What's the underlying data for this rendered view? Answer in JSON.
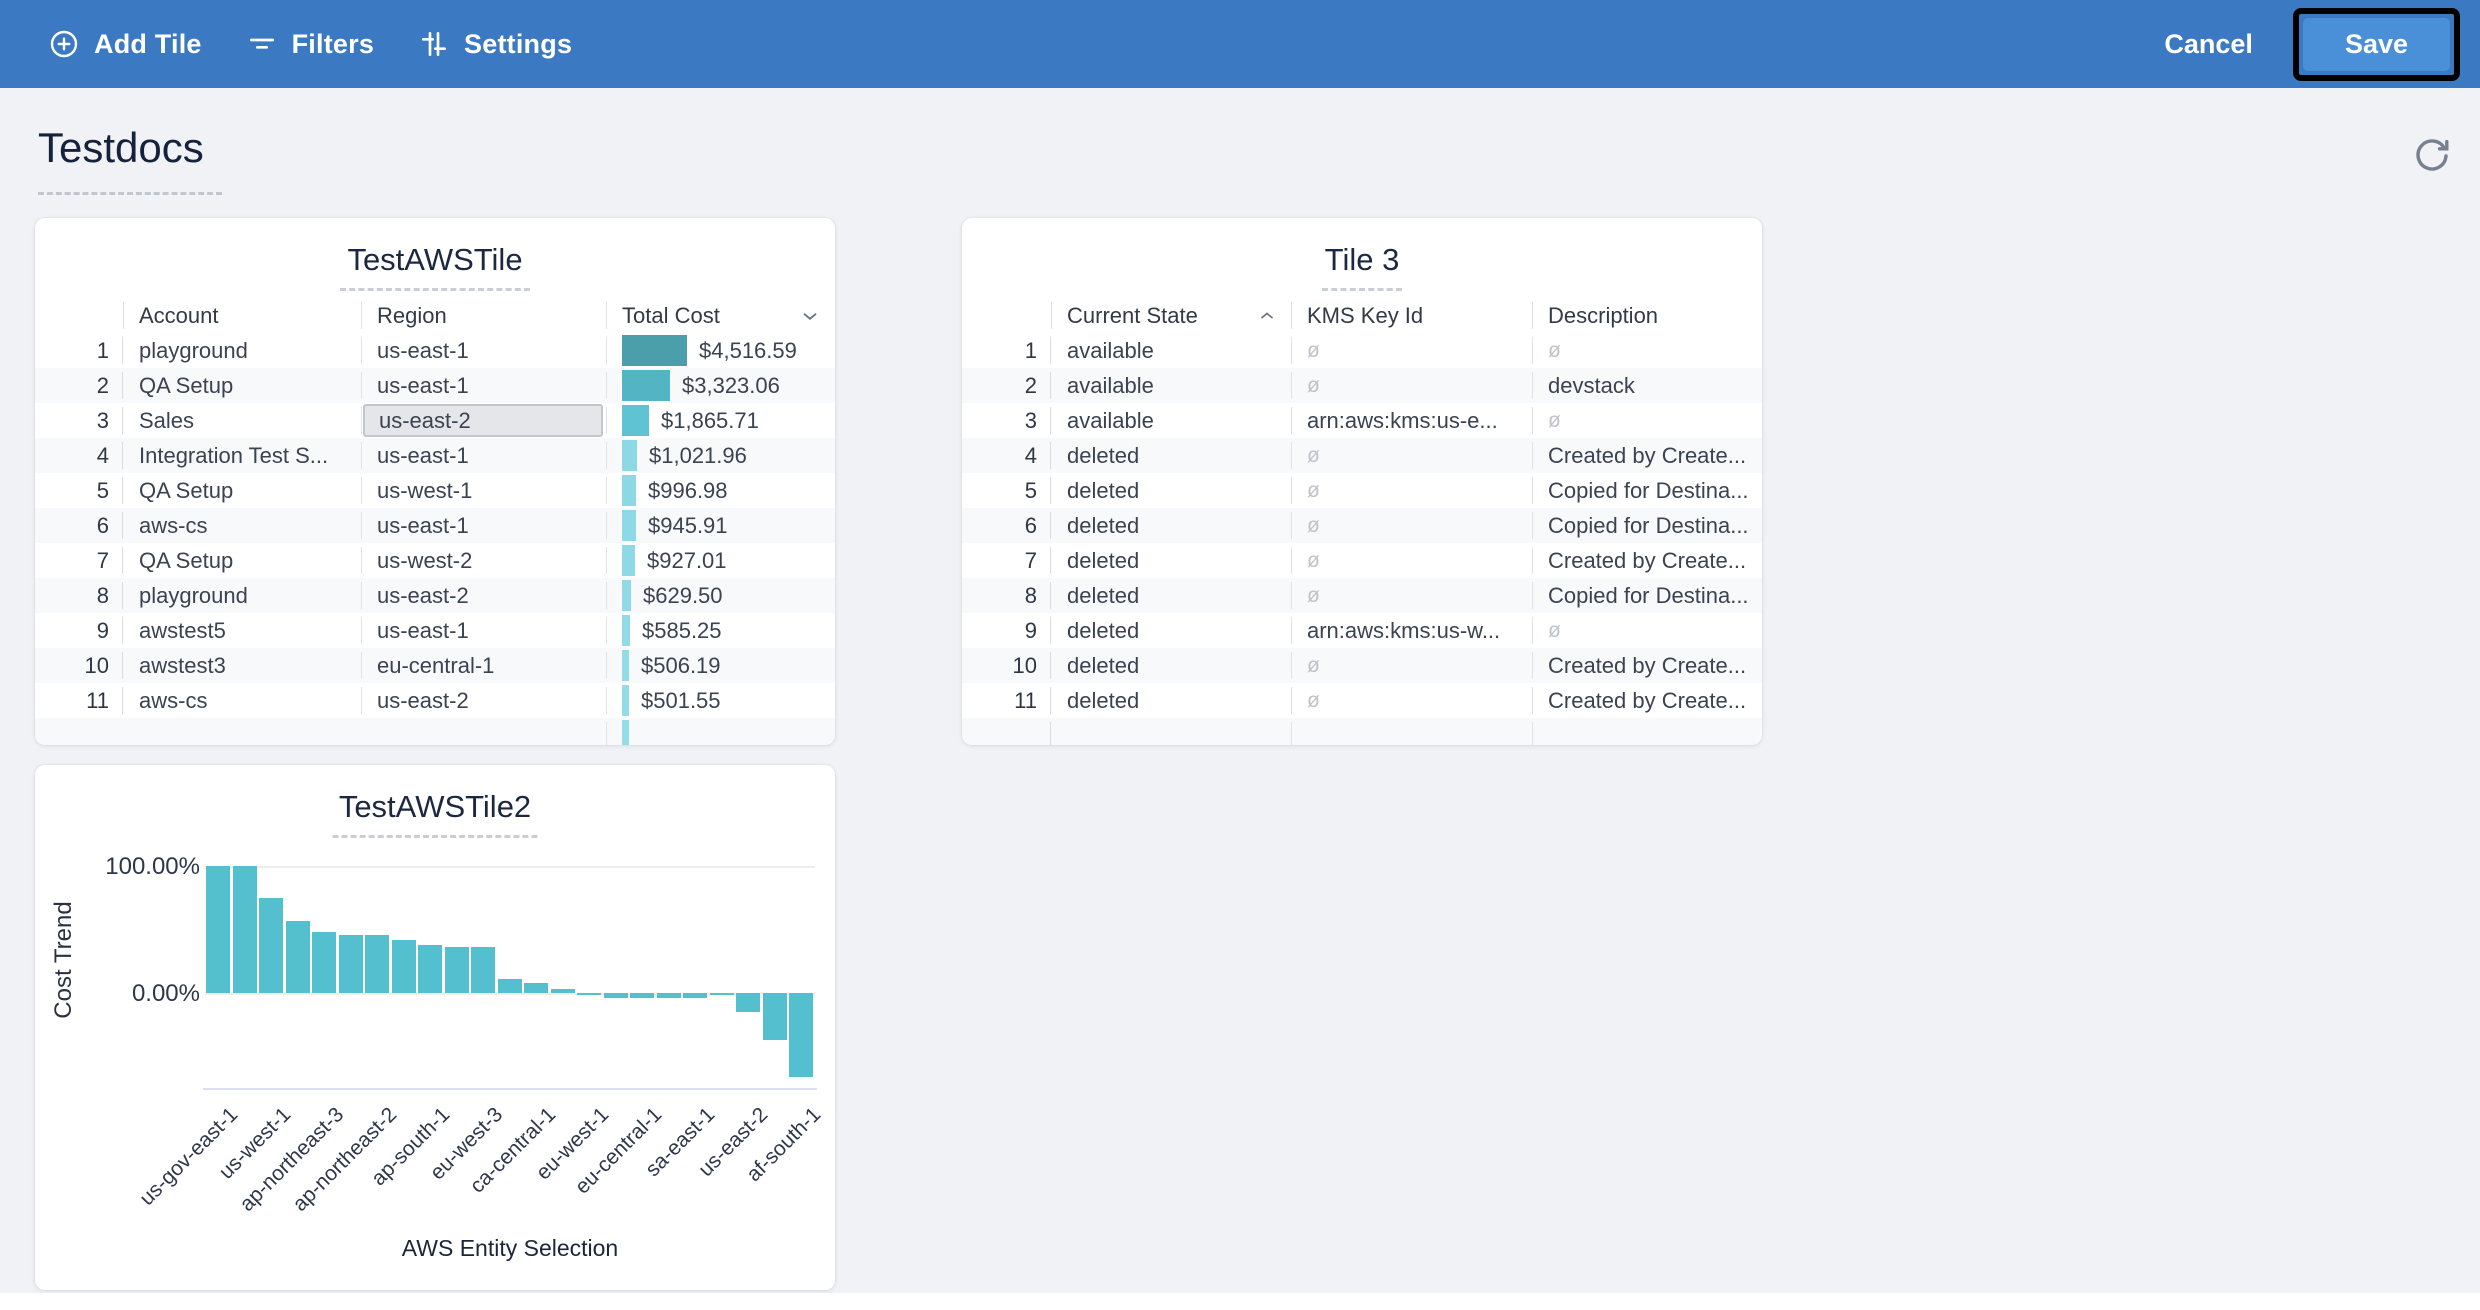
{
  "toolbar": {
    "add_tile_label": "Add Tile",
    "filters_label": "Filters",
    "settings_label": "Settings",
    "cancel_label": "Cancel",
    "save_label": "Save",
    "bar_color": "#3B7AC2",
    "save_button_color": "#4A90D8"
  },
  "page": {
    "title": "Testdocs"
  },
  "tile1": {
    "title": "TestAWSTile",
    "columns": {
      "0": "Account",
      "1": "Region",
      "2": "Total Cost"
    },
    "sort": {
      "column": "Total Cost",
      "direction": "desc"
    },
    "max_cost_value": 4516.59,
    "rows": [
      {
        "num": "1",
        "account": "playground",
        "region": "us-east-1",
        "cost": "$4,516.59",
        "cost_value": 4516.59,
        "bar_color": "#4A9FAB"
      },
      {
        "num": "2",
        "account": "QA Setup",
        "region": "us-east-1",
        "cost": "$3,323.06",
        "cost_value": 3323.06,
        "bar_color": "#53B5C4"
      },
      {
        "num": "3",
        "account": "Sales",
        "region": "us-east-2",
        "cost": "$1,865.71",
        "cost_value": 1865.71,
        "bar_color": "#5FC3D3",
        "region_selected": true
      },
      {
        "num": "4",
        "account": "Integration Test S...",
        "region": "us-east-1",
        "cost": "$1,021.96",
        "cost_value": 1021.96,
        "bar_color": "#8CD8E4"
      },
      {
        "num": "5",
        "account": "QA Setup",
        "region": "us-west-1",
        "cost": "$996.98",
        "cost_value": 996.98,
        "bar_color": "#8DD8E5"
      },
      {
        "num": "6",
        "account": "aws-cs",
        "region": "us-east-1",
        "cost": "$945.91",
        "cost_value": 945.91,
        "bar_color": "#8ED9E5"
      },
      {
        "num": "7",
        "account": "QA Setup",
        "region": "us-west-2",
        "cost": "$927.01",
        "cost_value": 927.01,
        "bar_color": "#8ED9E6"
      },
      {
        "num": "8",
        "account": "playground",
        "region": "us-east-2",
        "cost": "$629.50",
        "cost_value": 629.5,
        "bar_color": "#90DAE6"
      },
      {
        "num": "9",
        "account": "awstest5",
        "region": "us-east-1",
        "cost": "$585.25",
        "cost_value": 585.25,
        "bar_color": "#91DAE7"
      },
      {
        "num": "10",
        "account": "awstest3",
        "region": "eu-central-1",
        "cost": "$506.19",
        "cost_value": 506.19,
        "bar_color": "#92DBE7"
      },
      {
        "num": "11",
        "account": "aws-cs",
        "region": "us-east-2",
        "cost": "$501.55",
        "cost_value": 501.55,
        "bar_color": "#92DBE8"
      }
    ],
    "partial_row": {
      "cost_value": 490,
      "bar_color": "#94DCE8"
    }
  },
  "tile2": {
    "title": "Tile 3",
    "columns": {
      "0": "Current State",
      "1": "KMS Key Id",
      "2": "Description"
    },
    "sort": {
      "column": "Current State",
      "direction": "asc"
    },
    "null_symbol": "ø",
    "rows": [
      {
        "num": "1",
        "state": "available",
        "kms": null,
        "desc": null
      },
      {
        "num": "2",
        "state": "available",
        "kms": null,
        "desc": "devstack"
      },
      {
        "num": "3",
        "state": "available",
        "kms": "arn:aws:kms:us-e...",
        "desc": null
      },
      {
        "num": "4",
        "state": "deleted",
        "kms": null,
        "desc": "Created by Create..."
      },
      {
        "num": "5",
        "state": "deleted",
        "kms": null,
        "desc": "Copied for Destina..."
      },
      {
        "num": "6",
        "state": "deleted",
        "kms": null,
        "desc": "Copied for Destina..."
      },
      {
        "num": "7",
        "state": "deleted",
        "kms": null,
        "desc": "Created by Create..."
      },
      {
        "num": "8",
        "state": "deleted",
        "kms": null,
        "desc": "Copied for Destina..."
      },
      {
        "num": "9",
        "state": "deleted",
        "kms": "arn:aws:kms:us-w...",
        "desc": null
      },
      {
        "num": "10",
        "state": "deleted",
        "kms": null,
        "desc": "Created by Create..."
      },
      {
        "num": "11",
        "state": "deleted",
        "kms": null,
        "desc": "Created by Create..."
      }
    ]
  },
  "chart_data": {
    "type": "bar",
    "title": "TestAWSTile2",
    "xlabel": "AWS Entity Selection",
    "ylabel": "Cost Trend",
    "yticks": {
      "0": "100.00%",
      "1": "0.00%"
    },
    "ylim": [
      -80,
      105
    ],
    "grid": "horizontal lines at 0% and 100% only",
    "legend_position": "none",
    "bar_color": "#54BFCE",
    "categories": [
      "us-gov-east-1",
      "us-west-1",
      "ap-northeast-3",
      "ap-northeast-2",
      "ap-south-1",
      "eu-west-3",
      "ca-central-1",
      "eu-west-1",
      "eu-central-1",
      "sa-east-1",
      "us-east-2",
      "af-south-1"
    ],
    "category_label_every_nth_bar": 2,
    "values": [
      100,
      100,
      75,
      57,
      48,
      46,
      46,
      42,
      38,
      36,
      36,
      11,
      8,
      3,
      -1,
      -4,
      -4,
      -4,
      -4,
      -1,
      -15,
      -37,
      -66
    ]
  }
}
